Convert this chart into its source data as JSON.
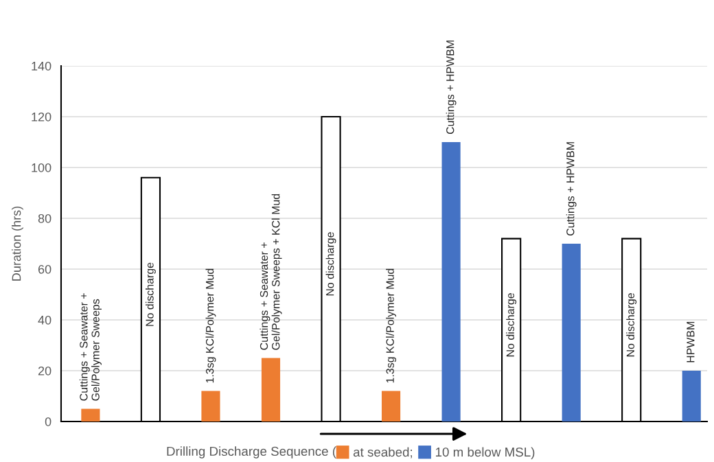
{
  "chart_data": {
    "type": "bar",
    "xlabel": "Drilling Discharge Sequence (",
    "ylabel": "Duration (hrs)",
    "categories": [
      null,
      null,
      null,
      null,
      null,
      null,
      null,
      null,
      null,
      null,
      null
    ],
    "series": [
      {
        "name": "at seabed;",
        "color": "#ed7d31",
        "values": [
          5,
          null,
          12,
          25,
          null,
          12,
          null,
          null,
          null,
          null,
          null
        ]
      },
      {
        "name": "10 m below MSL)",
        "color": "#4472c4",
        "values": [
          null,
          null,
          null,
          null,
          null,
          null,
          110,
          null,
          70,
          null,
          20
        ]
      },
      {
        "color": "#ffffff",
        "values": [
          null,
          96,
          null,
          null,
          120,
          null,
          null,
          72,
          null,
          72,
          null
        ]
      }
    ],
    "annotations": [
      "Cuttings + Seawater +\nGel/Polymer Sweeps",
      "No discharge",
      "1.3sg KCl/Polymer Mud",
      "Cuttings + Seawater +\nGel/Polymer Sweeps + KCl Mud",
      "No discharge",
      "1.3sg KCl/Polymer Mud",
      "Cuttings + HPWBM",
      "No discharge",
      "Cuttings + HPWBM",
      "No discharge",
      "HPWBM"
    ],
    "ylim": [
      0,
      140
    ],
    "yticks": [
      0,
      20,
      40,
      60,
      80,
      100,
      120,
      140
    ],
    "grid": "y",
    "legend": "bottom"
  }
}
